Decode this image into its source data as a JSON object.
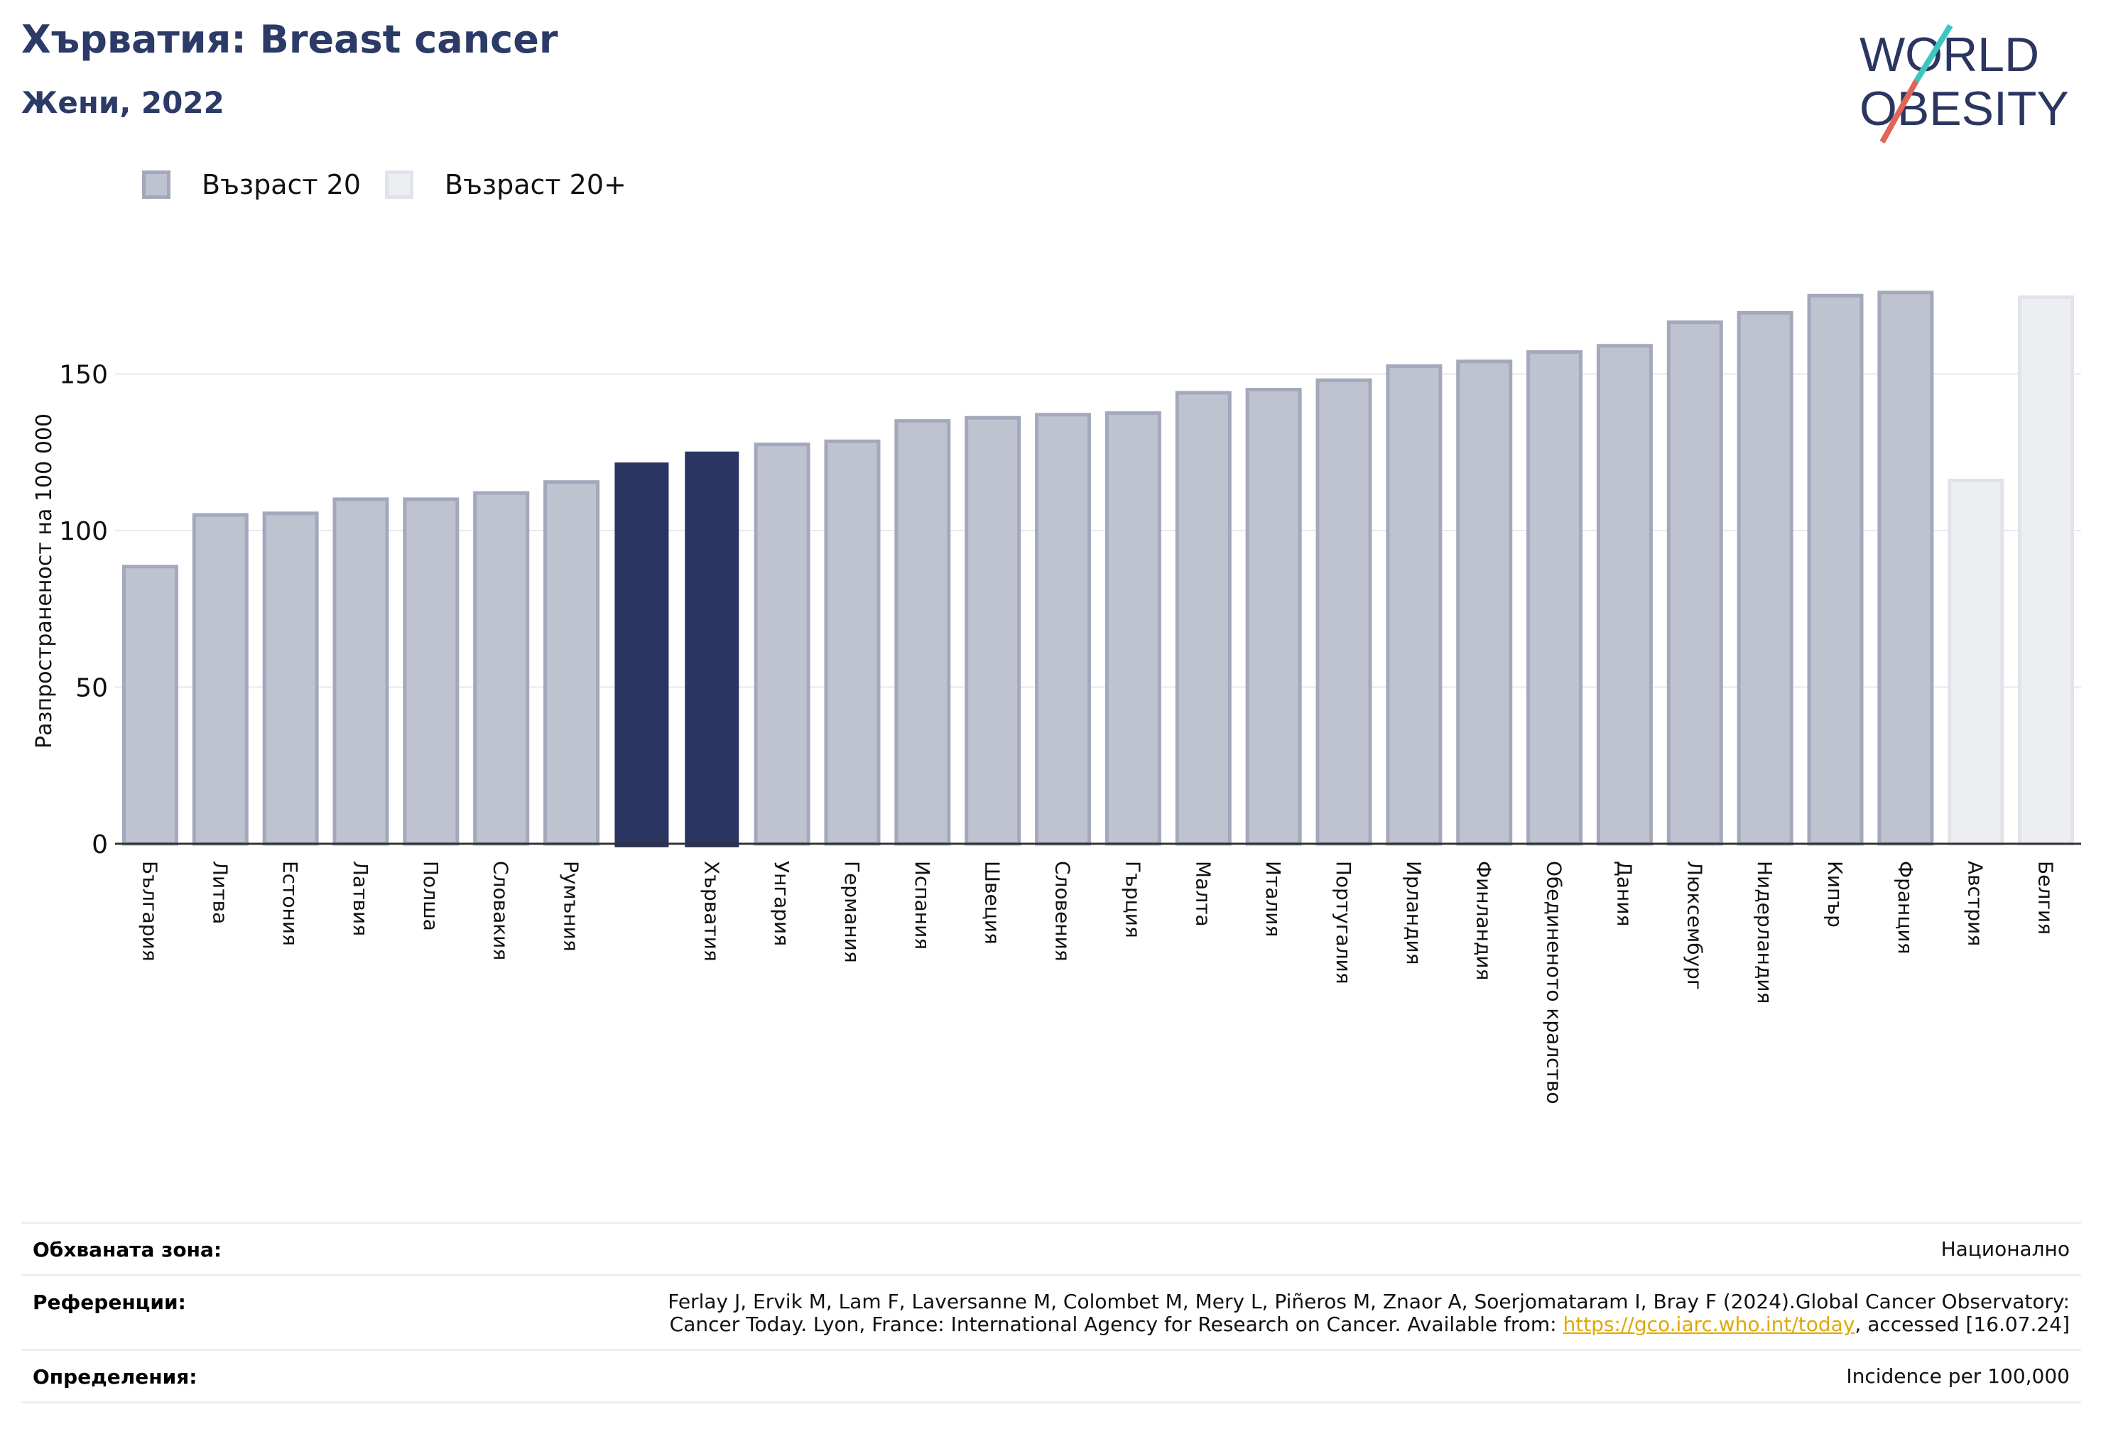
{
  "header": {
    "title": "Хърватия: Breast cancer",
    "subtitle": "Жени, 2022"
  },
  "logo": {
    "line1": "WORLD",
    "line2": "OBESITY"
  },
  "legend": [
    {
      "label": "Възраст 20",
      "color": "#bfc2cf",
      "border": "#a3a8bc"
    },
    {
      "label": "Възраст 20+",
      "color": "#eceef2",
      "border": "#e1e3ea"
    }
  ],
  "colors": {
    "default_fill": "#bfc2cf",
    "default_border": "#a3a8bc",
    "highlight": "#2b3561",
    "age20plus_fill": "#eceef2",
    "age20plus_border": "#e1e3ea"
  },
  "chart_data": {
    "type": "bar",
    "ylabel": "Разпространеност  на 100 000",
    "xlabel": "",
    "ylim": [
      0,
      190
    ],
    "yticks": [
      0,
      50,
      100,
      150
    ],
    "grid": true,
    "legend_placement": "top-left",
    "categories": [
      "България",
      "Литва",
      "Естония",
      "Латвия",
      "Полша",
      "Словакия",
      "Румъния",
      "",
      "Хърватия",
      "Унгария",
      "Германия",
      "Испания",
      "Швеция",
      "Словения",
      "Гърция",
      "Малта",
      "Италия",
      "Португалия",
      "Ирландия",
      "Финландия",
      "Обединеното кралство",
      "Дания",
      "Люксембург",
      "Нидерландия",
      "Кипър",
      "Франция",
      "Австрия",
      "Белгия"
    ],
    "series": [
      {
        "name": "Възраст 20",
        "values": [
          88.5,
          105,
          105.5,
          110,
          110,
          112,
          115.5,
          121.5,
          125,
          127.5,
          128.5,
          135,
          136,
          137,
          137.5,
          144,
          145,
          148,
          152.5,
          154,
          157,
          159,
          166.5,
          169.5,
          175,
          176,
          null,
          null
        ]
      },
      {
        "name": "Възраст 20+",
        "values": [
          null,
          null,
          null,
          null,
          null,
          null,
          null,
          null,
          null,
          null,
          null,
          null,
          null,
          null,
          null,
          null,
          null,
          null,
          null,
          null,
          null,
          null,
          null,
          null,
          null,
          null,
          116,
          174.5
        ]
      }
    ],
    "highlight": [
      7,
      8
    ]
  },
  "footer": {
    "rows": [
      {
        "label": "Обхваната зона:",
        "value": "Национално"
      },
      {
        "label": "Референции:",
        "value_line1": "Ferlay J, Ervik M, Lam F, Laversanne M, Colombet M, Mery L, Piñeros M, Znaor A, Soerjomataram I, Bray F (2024).Global Cancer Observatory:",
        "value_line2_pre": "Cancer Today. Lyon, France: International Agency for Research on Cancer. Available from: ",
        "link": "https://gco.iarc.who.int/today",
        "value_line2_post": ", accessed [16.07.24]"
      },
      {
        "label": "Определения:",
        "value": "Incidence per 100,000"
      }
    ]
  }
}
